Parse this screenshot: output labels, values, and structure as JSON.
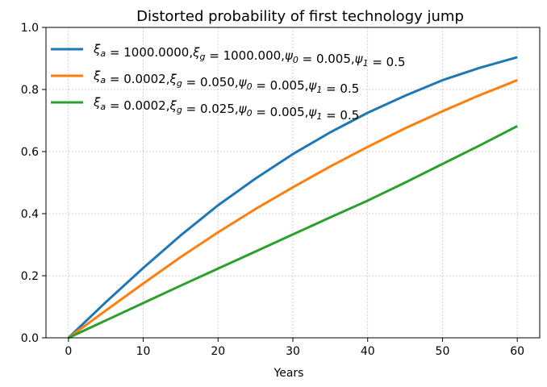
{
  "chart_data": {
    "type": "line",
    "title": "Distorted probability of first technology jump",
    "xlabel": "Years",
    "ylabel": "",
    "xlim": [
      -3,
      63
    ],
    "ylim": [
      0.0,
      1.0
    ],
    "xticks": [
      0,
      10,
      20,
      30,
      40,
      50,
      60
    ],
    "xtick_labels": [
      "0",
      "10",
      "20",
      "30",
      "40",
      "50",
      "60"
    ],
    "yticks": [
      0.0,
      0.2,
      0.4,
      0.6,
      0.8,
      1.0
    ],
    "ytick_labels": [
      "0.0",
      "0.2",
      "0.4",
      "0.6",
      "0.8",
      "1.0"
    ],
    "grid": true,
    "legend_position": "top-left",
    "x": [
      0,
      5,
      10,
      15,
      20,
      25,
      30,
      35,
      40,
      45,
      50,
      55,
      60
    ],
    "series": [
      {
        "name": "ξa = 1000.0000,ξg = 1000.000,ψ0 = 0.005,ψ1 = 0.5",
        "legend": {
          "xi_a": "1000.0000",
          "xi_g": "1000.000",
          "psi0": "0.005",
          "psi1": "0.5"
        },
        "color": "#1f77b4",
        "values": [
          0.0,
          0.115,
          0.225,
          0.33,
          0.427,
          0.513,
          0.592,
          0.662,
          0.725,
          0.78,
          0.83,
          0.87,
          0.904
        ]
      },
      {
        "name": "ξa = 0.0002,ξg = 0.050,ψ0 = 0.005,ψ1 = 0.5",
        "legend": {
          "xi_a": "0.0002",
          "xi_g": "0.050",
          "psi0": "0.005",
          "psi1": "0.5"
        },
        "color": "#ff7f0e",
        "values": [
          0.0,
          0.088,
          0.175,
          0.26,
          0.34,
          0.415,
          0.485,
          0.552,
          0.615,
          0.675,
          0.73,
          0.782,
          0.83
        ]
      },
      {
        "name": "ξa = 0.0002,ξg = 0.025,ψ0 = 0.005,ψ1 = 0.5",
        "legend": {
          "xi_a": "0.0002",
          "xi_g": "0.025",
          "psi0": "0.005",
          "psi1": "0.5"
        },
        "color": "#2ca02c",
        "values": [
          0.0,
          0.056,
          0.112,
          0.168,
          0.223,
          0.278,
          0.333,
          0.388,
          0.442,
          0.5,
          0.56,
          0.62,
          0.682
        ]
      }
    ]
  }
}
